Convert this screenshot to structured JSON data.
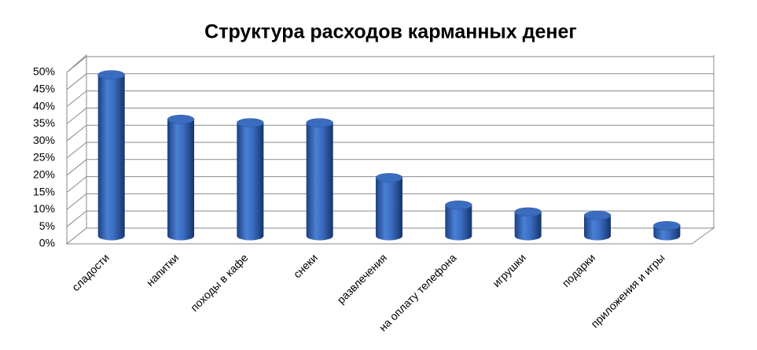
{
  "chart_data": {
    "type": "bar3d-cylinder",
    "title": "Структура расходов карманных денег",
    "categories": [
      "сладости",
      "напитки",
      "походы  в кафе",
      "снеки",
      "развлечения",
      "на оплату телефона",
      "игрушки",
      "подарки",
      "приложения и игры"
    ],
    "values": [
      47,
      34,
      33,
      33,
      17,
      9,
      7,
      6,
      3
    ],
    "color": "#3a6cc0",
    "ylim": [
      0,
      50
    ],
    "yticks": [
      {
        "value": 0,
        "label": "0%"
      },
      {
        "value": 5,
        "label": "5%"
      },
      {
        "value": 10,
        "label": "10%"
      },
      {
        "value": 15,
        "label": "15%"
      },
      {
        "value": 20,
        "label": "20%"
      },
      {
        "value": 25,
        "label": "25%"
      },
      {
        "value": 30,
        "label": "30%"
      },
      {
        "value": 35,
        "label": "35%"
      },
      {
        "value": 40,
        "label": "40%"
      },
      {
        "value": 45,
        "label": "45%"
      },
      {
        "value": 50,
        "label": "50%"
      }
    ],
    "grid": true
  }
}
